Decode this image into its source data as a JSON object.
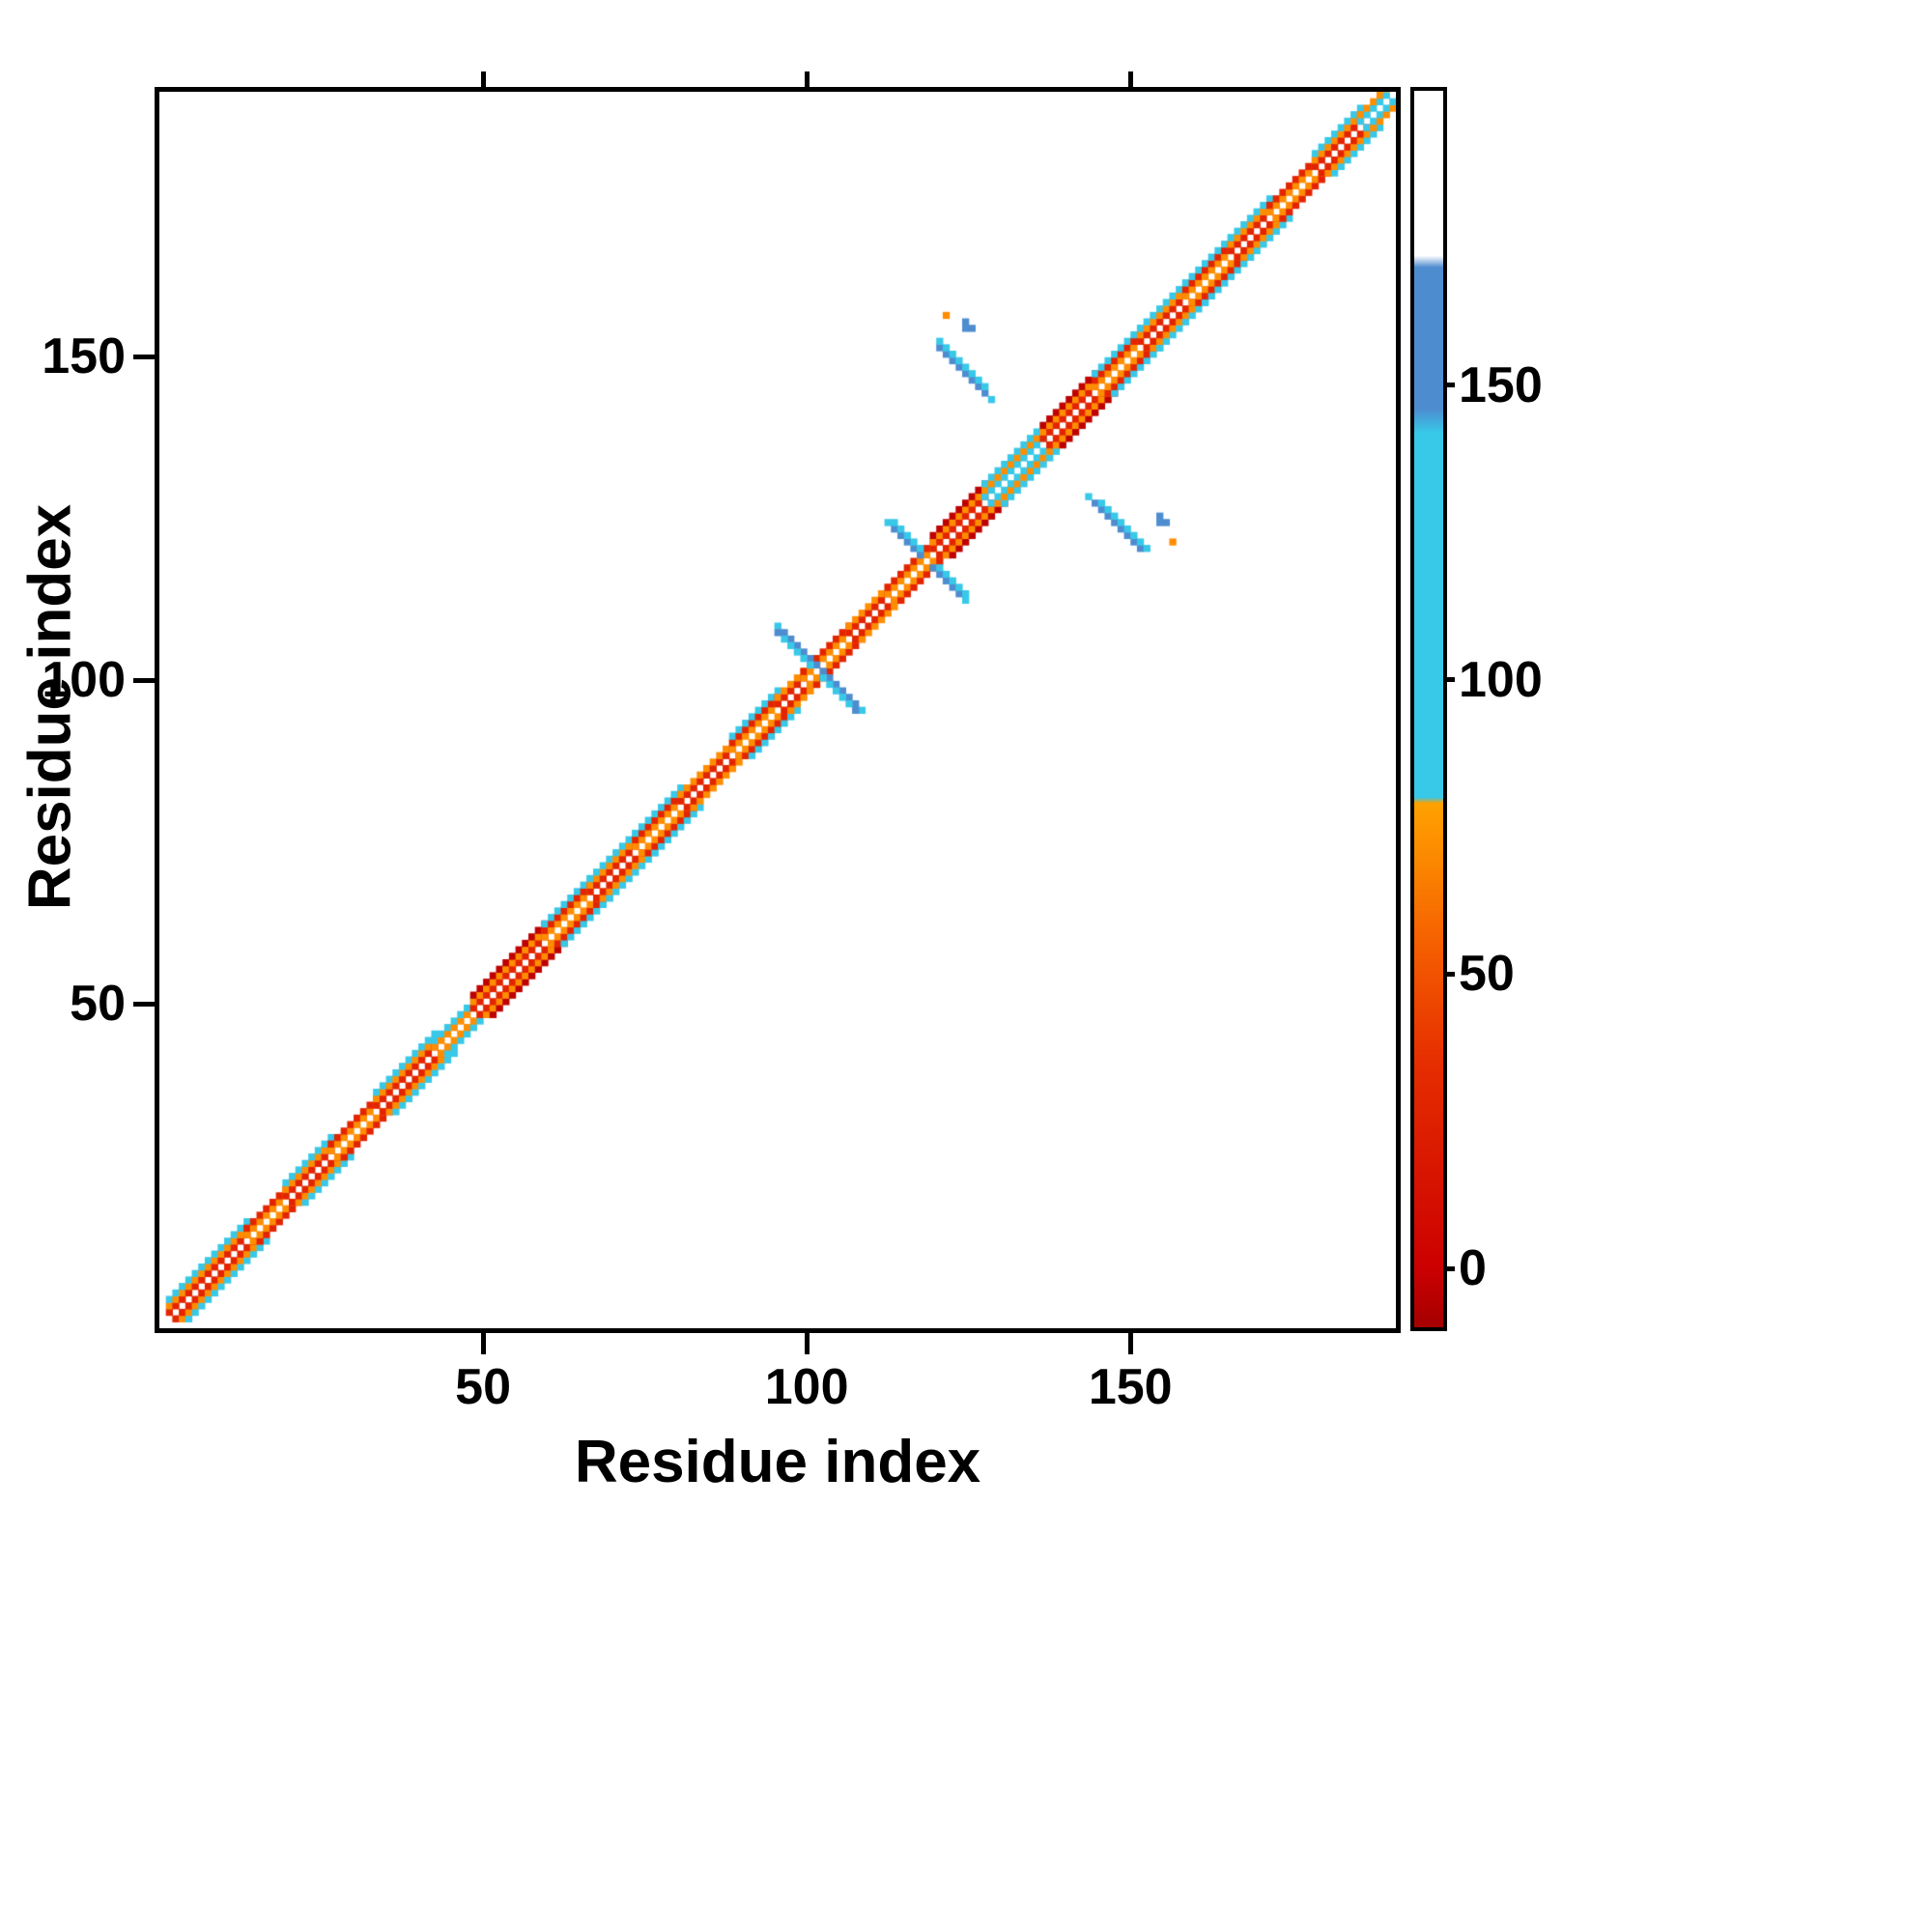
{
  "figure": {
    "background": "#ffffff",
    "frame_color": "#000000"
  },
  "chart_data": {
    "type": "heatmap",
    "subtype": "protein-contact-map",
    "title": "",
    "xlabel": "Residue index",
    "ylabel": "Residue index",
    "n_residues": 191,
    "xlim": [
      0,
      191
    ],
    "ylim": [
      0,
      191
    ],
    "xticks": [
      50,
      100,
      150
    ],
    "yticks": [
      50,
      100,
      150
    ],
    "grid": false,
    "legend_position": "none",
    "palette": {
      "red": "#e32400",
      "darkred": "#bf0000",
      "orange": "#ff8d00",
      "amber": "#ffa528",
      "cyan": "#38c8e8",
      "blue": "#4e8cd0",
      "white": "#ffffff"
    },
    "diag_segments": [
      {
        "r": [
          1,
          13
        ],
        "layers": {
          "1": "red",
          "2": "orange",
          "3": "cyan"
        }
      },
      {
        "r": [
          13,
          19
        ],
        "layers": {
          "1": "orange",
          "2": "red"
        }
      },
      {
        "r": [
          19,
          26
        ],
        "layers": {
          "1": "red",
          "2": "orange",
          "3": "cyan"
        }
      },
      {
        "r": [
          26,
          33
        ],
        "layers": {
          "1": "orange",
          "2": "red"
        }
      },
      {
        "r": [
          33,
          42
        ],
        "layers": {
          "1": "red",
          "2": "orange",
          "3": "cyan"
        }
      },
      {
        "r": [
          42,
          48
        ],
        "layers": {
          "1": "orange",
          "2": "cyan"
        }
      },
      {
        "r": [
          48,
          59
        ],
        "layers": {
          "1": "red",
          "2": "orange",
          "3": "darkred"
        }
      },
      {
        "r": [
          59,
          66
        ],
        "layers": {
          "1": "orange",
          "2": "red",
          "3": "cyan"
        }
      },
      {
        "r": [
          66,
          73
        ],
        "layers": {
          "1": "red",
          "2": "orange",
          "3": "cyan"
        }
      },
      {
        "r": [
          73,
          80
        ],
        "layers": {
          "1": "orange",
          "2": "red",
          "3": "cyan"
        }
      },
      {
        "r": [
          80,
          88
        ],
        "layers": {
          "1": "red",
          "2": "orange"
        }
      },
      {
        "r": [
          88,
          95
        ],
        "layers": {
          "1": "orange",
          "2": "red",
          "3": "cyan"
        }
      },
      {
        "r": [
          95,
          99
        ],
        "layers": {
          "1": "red",
          "2": "orange"
        }
      },
      {
        "r": [
          99,
          106
        ],
        "layers": {
          "1": "orange",
          "2": "red"
        }
      },
      {
        "r": [
          106,
          112
        ],
        "layers": {
          "1": "red",
          "2": "orange"
        }
      },
      {
        "r": [
          112,
          119
        ],
        "layers": {
          "1": "orange",
          "2": "red"
        }
      },
      {
        "r": [
          119,
          127
        ],
        "layers": {
          "1": "red",
          "2": "orange",
          "3": "darkred"
        }
      },
      {
        "r": [
          127,
          136
        ],
        "layers": {
          "1": "cyan",
          "2": "orange",
          "3": "cyan"
        }
      },
      {
        "r": [
          136,
          144
        ],
        "layers": {
          "1": "red",
          "2": "orange",
          "3": "darkred"
        }
      },
      {
        "r": [
          144,
          151
        ],
        "layers": {
          "1": "orange",
          "2": "red",
          "3": "cyan"
        }
      },
      {
        "r": [
          151,
          158
        ],
        "layers": {
          "1": "red",
          "2": "orange",
          "3": "cyan"
        }
      },
      {
        "r": [
          158,
          165
        ],
        "layers": {
          "1": "orange",
          "2": "red",
          "3": "cyan"
        }
      },
      {
        "r": [
          165,
          171
        ],
        "layers": {
          "1": "red",
          "2": "orange",
          "3": "cyan"
        }
      },
      {
        "r": [
          171,
          178
        ],
        "layers": {
          "1": "orange",
          "2": "red"
        }
      },
      {
        "r": [
          178,
          185
        ],
        "layers": {
          "1": "red",
          "2": "orange",
          "3": "cyan"
        }
      },
      {
        "r": [
          185,
          189
        ],
        "layers": {
          "1": "cyan",
          "2": "orange"
        }
      }
    ],
    "clusters": [
      {
        "name": "hairpin-100",
        "mirror": true,
        "cells": [
          [
            96,
            107,
            "blue"
          ],
          [
            97,
            106,
            "blue"
          ],
          [
            98,
            105,
            "blue"
          ],
          [
            99,
            104,
            "blue"
          ],
          [
            100,
            103,
            "blue"
          ],
          [
            101,
            102,
            "blue"
          ],
          [
            96,
            106,
            "cyan"
          ],
          [
            97,
            105,
            "cyan"
          ],
          [
            98,
            104,
            "cyan"
          ],
          [
            99,
            103,
            "cyan"
          ],
          [
            100,
            102,
            "cyan"
          ],
          [
            95,
            108,
            "cyan"
          ],
          [
            95,
            107,
            "blue"
          ]
        ]
      },
      {
        "name": "hairpin-117",
        "mirror": true,
        "cells": [
          [
            112,
            124,
            "cyan"
          ],
          [
            113,
            123,
            "blue"
          ],
          [
            114,
            122,
            "blue"
          ],
          [
            115,
            121,
            "blue"
          ],
          [
            116,
            120,
            "blue"
          ],
          [
            117,
            119,
            "blue"
          ],
          [
            113,
            124,
            "cyan"
          ],
          [
            114,
            123,
            "cyan"
          ],
          [
            115,
            122,
            "cyan"
          ],
          [
            116,
            121,
            "cyan"
          ],
          [
            117,
            120,
            "cyan"
          ]
        ]
      },
      {
        "name": "antiparallel-122-148",
        "mirror": true,
        "cells": [
          [
            120,
            151,
            "blue"
          ],
          [
            121,
            150,
            "blue"
          ],
          [
            122,
            149,
            "blue"
          ],
          [
            123,
            148,
            "blue"
          ],
          [
            124,
            147,
            "blue"
          ],
          [
            125,
            146,
            "blue"
          ],
          [
            126,
            145,
            "blue"
          ],
          [
            127,
            144,
            "blue"
          ],
          [
            128,
            143,
            "cyan"
          ],
          [
            120,
            152,
            "cyan"
          ],
          [
            121,
            151,
            "cyan"
          ],
          [
            122,
            150,
            "cyan"
          ],
          [
            123,
            149,
            "cyan"
          ],
          [
            124,
            148,
            "cyan"
          ],
          [
            125,
            147,
            "cyan"
          ],
          [
            126,
            146,
            "cyan"
          ],
          [
            127,
            145,
            "cyan"
          ]
        ]
      },
      {
        "name": "orange-dot-121-156",
        "mirror": true,
        "cells": [
          [
            121,
            156,
            "orange"
          ]
        ]
      },
      {
        "name": "blue-dash-124-155",
        "mirror": true,
        "cells": [
          [
            124,
            154,
            "blue"
          ],
          [
            124,
            155,
            "blue"
          ],
          [
            125,
            154,
            "blue"
          ]
        ]
      }
    ],
    "colorbar": {
      "vmin": -10,
      "vmax": 200,
      "ticks": [
        0,
        50,
        100,
        150
      ],
      "stops": [
        [
          -10,
          "#a50000"
        ],
        [
          0,
          "#cc0000"
        ],
        [
          35,
          "#e62e00"
        ],
        [
          55,
          "#f55f00"
        ],
        [
          70,
          "#fc8a00"
        ],
        [
          79,
          "#ffa200"
        ],
        [
          80,
          "#38c8e8"
        ],
        [
          142,
          "#38c8e8"
        ],
        [
          146,
          "#4e8cd0"
        ],
        [
          170,
          "#4e8cd0"
        ],
        [
          172,
          "#ffffff"
        ],
        [
          200,
          "#ffffff"
        ]
      ]
    }
  }
}
